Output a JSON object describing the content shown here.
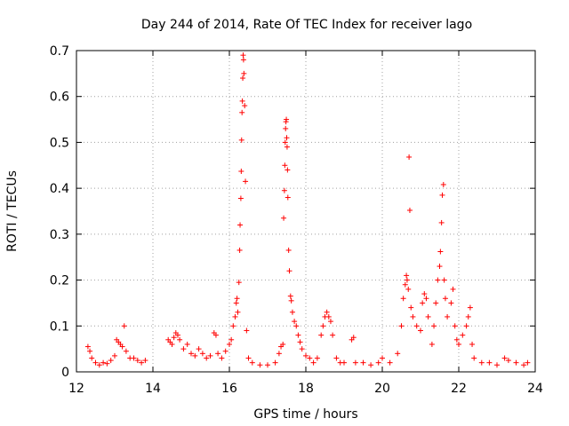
{
  "chart_data": {
    "type": "scatter",
    "title": "Day 244 of 2014, Rate Of TEC Index for receiver lago",
    "xlabel": "GPS time / hours",
    "ylabel": "ROTI / TECUs",
    "xlim": [
      12,
      24
    ],
    "ylim": [
      0,
      0.7
    ],
    "xticks": [
      12,
      14,
      16,
      18,
      20,
      22,
      24
    ],
    "yticks": [
      0,
      0.1,
      0.2,
      0.3,
      0.4,
      0.5,
      0.6,
      0.7
    ],
    "grid": true,
    "marker": "+",
    "color": "#ff0000",
    "series": [
      {
        "name": "ROTI",
        "points": [
          [
            12.3,
            0.055
          ],
          [
            12.35,
            0.045
          ],
          [
            12.4,
            0.03
          ],
          [
            12.5,
            0.02
          ],
          [
            12.6,
            0.015
          ],
          [
            12.7,
            0.02
          ],
          [
            12.8,
            0.018
          ],
          [
            12.9,
            0.025
          ],
          [
            13.0,
            0.035
          ],
          [
            13.05,
            0.07
          ],
          [
            13.1,
            0.065
          ],
          [
            13.15,
            0.06
          ],
          [
            13.2,
            0.055
          ],
          [
            13.25,
            0.1
          ],
          [
            13.3,
            0.045
          ],
          [
            13.4,
            0.03
          ],
          [
            13.5,
            0.03
          ],
          [
            13.6,
            0.025
          ],
          [
            13.7,
            0.02
          ],
          [
            13.8,
            0.025
          ],
          [
            14.4,
            0.07
          ],
          [
            14.45,
            0.065
          ],
          [
            14.5,
            0.06
          ],
          [
            14.55,
            0.075
          ],
          [
            14.6,
            0.085
          ],
          [
            14.65,
            0.08
          ],
          [
            14.7,
            0.07
          ],
          [
            14.8,
            0.05
          ],
          [
            14.9,
            0.06
          ],
          [
            15.0,
            0.04
          ],
          [
            15.1,
            0.035
          ],
          [
            15.2,
            0.05
          ],
          [
            15.3,
            0.04
          ],
          [
            15.4,
            0.03
          ],
          [
            15.5,
            0.035
          ],
          [
            15.6,
            0.085
          ],
          [
            15.65,
            0.08
          ],
          [
            15.7,
            0.04
          ],
          [
            15.8,
            0.03
          ],
          [
            15.9,
            0.045
          ],
          [
            16.0,
            0.06
          ],
          [
            16.05,
            0.07
          ],
          [
            16.1,
            0.1
          ],
          [
            16.15,
            0.12
          ],
          [
            16.18,
            0.15
          ],
          [
            16.2,
            0.16
          ],
          [
            16.22,
            0.13
          ],
          [
            16.25,
            0.195
          ],
          [
            16.27,
            0.265
          ],
          [
            16.28,
            0.32
          ],
          [
            16.3,
            0.378
          ],
          [
            16.31,
            0.437
          ],
          [
            16.32,
            0.505
          ],
          [
            16.33,
            0.565
          ],
          [
            16.34,
            0.59
          ],
          [
            16.35,
            0.64
          ],
          [
            16.36,
            0.69
          ],
          [
            16.37,
            0.68
          ],
          [
            16.38,
            0.65
          ],
          [
            16.4,
            0.58
          ],
          [
            16.42,
            0.415
          ],
          [
            16.45,
            0.09
          ],
          [
            16.5,
            0.03
          ],
          [
            16.6,
            0.02
          ],
          [
            16.8,
            0.015
          ],
          [
            17.0,
            0.015
          ],
          [
            17.2,
            0.02
          ],
          [
            17.3,
            0.04
          ],
          [
            17.35,
            0.055
          ],
          [
            17.4,
            0.06
          ],
          [
            17.42,
            0.335
          ],
          [
            17.44,
            0.395
          ],
          [
            17.45,
            0.45
          ],
          [
            17.46,
            0.5
          ],
          [
            17.47,
            0.53
          ],
          [
            17.48,
            0.545
          ],
          [
            17.49,
            0.55
          ],
          [
            17.5,
            0.51
          ],
          [
            17.51,
            0.49
          ],
          [
            17.52,
            0.44
          ],
          [
            17.53,
            0.38
          ],
          [
            17.55,
            0.265
          ],
          [
            17.57,
            0.22
          ],
          [
            17.6,
            0.165
          ],
          [
            17.62,
            0.155
          ],
          [
            17.65,
            0.13
          ],
          [
            17.7,
            0.11
          ],
          [
            17.75,
            0.1
          ],
          [
            17.8,
            0.08
          ],
          [
            17.85,
            0.065
          ],
          [
            17.9,
            0.05
          ],
          [
            18.0,
            0.035
          ],
          [
            18.1,
            0.03
          ],
          [
            18.2,
            0.02
          ],
          [
            18.3,
            0.03
          ],
          [
            18.4,
            0.08
          ],
          [
            18.45,
            0.1
          ],
          [
            18.5,
            0.12
          ],
          [
            18.55,
            0.13
          ],
          [
            18.6,
            0.12
          ],
          [
            18.65,
            0.11
          ],
          [
            18.7,
            0.08
          ],
          [
            18.8,
            0.03
          ],
          [
            18.9,
            0.02
          ],
          [
            19.0,
            0.02
          ],
          [
            19.2,
            0.07
          ],
          [
            19.25,
            0.075
          ],
          [
            19.3,
            0.02
          ],
          [
            19.5,
            0.02
          ],
          [
            19.7,
            0.015
          ],
          [
            19.9,
            0.02
          ],
          [
            20.0,
            0.03
          ],
          [
            20.2,
            0.02
          ],
          [
            20.4,
            0.04
          ],
          [
            20.5,
            0.1
          ],
          [
            20.55,
            0.16
          ],
          [
            20.6,
            0.19
          ],
          [
            20.63,
            0.21
          ],
          [
            20.65,
            0.2
          ],
          [
            20.68,
            0.18
          ],
          [
            20.7,
            0.468
          ],
          [
            20.72,
            0.352
          ],
          [
            20.75,
            0.14
          ],
          [
            20.8,
            0.12
          ],
          [
            20.9,
            0.1
          ],
          [
            21.0,
            0.09
          ],
          [
            21.05,
            0.15
          ],
          [
            21.1,
            0.17
          ],
          [
            21.15,
            0.16
          ],
          [
            21.2,
            0.12
          ],
          [
            21.3,
            0.06
          ],
          [
            21.35,
            0.1
          ],
          [
            21.4,
            0.15
          ],
          [
            21.45,
            0.2
          ],
          [
            21.5,
            0.23
          ],
          [
            21.52,
            0.262
          ],
          [
            21.55,
            0.325
          ],
          [
            21.57,
            0.385
          ],
          [
            21.6,
            0.408
          ],
          [
            21.62,
            0.2
          ],
          [
            21.65,
            0.16
          ],
          [
            21.7,
            0.12
          ],
          [
            21.8,
            0.15
          ],
          [
            21.85,
            0.18
          ],
          [
            21.9,
            0.1
          ],
          [
            21.95,
            0.07
          ],
          [
            22.0,
            0.06
          ],
          [
            22.1,
            0.08
          ],
          [
            22.2,
            0.1
          ],
          [
            22.25,
            0.12
          ],
          [
            22.3,
            0.14
          ],
          [
            22.35,
            0.06
          ],
          [
            22.4,
            0.03
          ],
          [
            22.6,
            0.02
          ],
          [
            22.8,
            0.02
          ],
          [
            23.0,
            0.015
          ],
          [
            23.2,
            0.03
          ],
          [
            23.3,
            0.025
          ],
          [
            23.5,
            0.02
          ],
          [
            23.7,
            0.015
          ],
          [
            23.8,
            0.02
          ]
        ]
      }
    ]
  }
}
